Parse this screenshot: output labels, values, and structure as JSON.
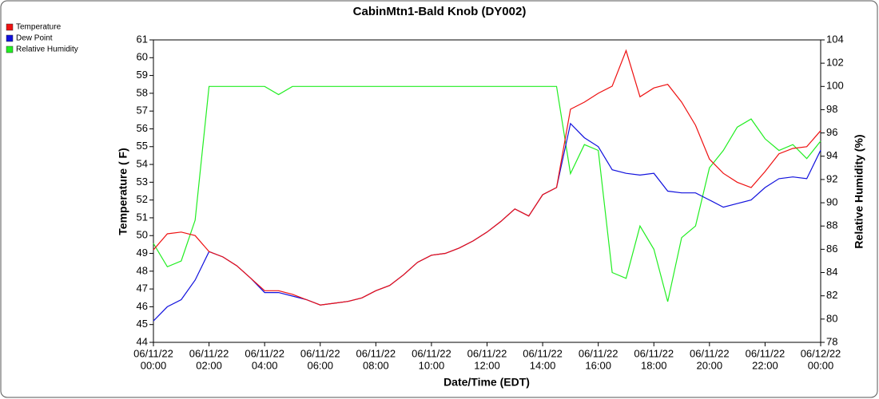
{
  "chart_data": {
    "type": "line",
    "title": "CabinMtn1-Bald Knob (DY002)",
    "x_label": "Date/Time (EDT)",
    "y_label": "Temperature ( F)",
    "y2_label": "Relative Humidity (%)",
    "legend": "top-left",
    "xlim": [
      "2022-06-11T00:00",
      "2022-06-12T00:00"
    ],
    "xticks": [
      {
        "value": "2022-06-11T00:00",
        "label": [
          "06/11/22",
          "00:00"
        ]
      },
      {
        "value": "2022-06-11T02:00",
        "label": [
          "06/11/22",
          "02:00"
        ]
      },
      {
        "value": "2022-06-11T04:00",
        "label": [
          "06/11/22",
          "04:00"
        ]
      },
      {
        "value": "2022-06-11T06:00",
        "label": [
          "06/11/22",
          "06:00"
        ]
      },
      {
        "value": "2022-06-11T08:00",
        "label": [
          "06/11/22",
          "08:00"
        ]
      },
      {
        "value": "2022-06-11T10:00",
        "label": [
          "06/11/22",
          "10:00"
        ]
      },
      {
        "value": "2022-06-11T12:00",
        "label": [
          "06/11/22",
          "12:00"
        ]
      },
      {
        "value": "2022-06-11T14:00",
        "label": [
          "06/11/22",
          "14:00"
        ]
      },
      {
        "value": "2022-06-11T16:00",
        "label": [
          "06/11/22",
          "16:00"
        ]
      },
      {
        "value": "2022-06-11T18:00",
        "label": [
          "06/11/22",
          "18:00"
        ]
      },
      {
        "value": "2022-06-11T20:00",
        "label": [
          "06/11/22",
          "20:00"
        ]
      },
      {
        "value": "2022-06-11T22:00",
        "label": [
          "06/11/22",
          "22:00"
        ]
      },
      {
        "value": "2022-06-12T00:00",
        "label": [
          "06/12/22",
          "00:00"
        ]
      }
    ],
    "ylim": [
      44,
      61
    ],
    "yticks": [
      44,
      45,
      46,
      47,
      48,
      49,
      50,
      51,
      52,
      53,
      54,
      55,
      56,
      57,
      58,
      59,
      60,
      61
    ],
    "y2lim": [
      78,
      104
    ],
    "y2ticks": [
      78,
      80,
      82,
      84,
      86,
      88,
      90,
      92,
      94,
      96,
      98,
      100,
      102,
      104
    ],
    "x": [
      "2022-06-11T00:00",
      "2022-06-11T00:30",
      "2022-06-11T01:00",
      "2022-06-11T01:30",
      "2022-06-11T02:00",
      "2022-06-11T02:30",
      "2022-06-11T03:00",
      "2022-06-11T03:30",
      "2022-06-11T04:00",
      "2022-06-11T04:30",
      "2022-06-11T05:00",
      "2022-06-11T05:30",
      "2022-06-11T06:00",
      "2022-06-11T06:30",
      "2022-06-11T07:00",
      "2022-06-11T07:30",
      "2022-06-11T08:00",
      "2022-06-11T08:30",
      "2022-06-11T09:00",
      "2022-06-11T09:30",
      "2022-06-11T10:00",
      "2022-06-11T10:30",
      "2022-06-11T11:00",
      "2022-06-11T11:30",
      "2022-06-11T12:00",
      "2022-06-11T12:30",
      "2022-06-11T13:00",
      "2022-06-11T13:30",
      "2022-06-11T14:00",
      "2022-06-11T14:30",
      "2022-06-11T15:00",
      "2022-06-11T15:30",
      "2022-06-11T16:00",
      "2022-06-11T16:30",
      "2022-06-11T17:00",
      "2022-06-11T17:30",
      "2022-06-11T18:00",
      "2022-06-11T18:30",
      "2022-06-11T19:00",
      "2022-06-11T19:30",
      "2022-06-11T20:00",
      "2022-06-11T20:30",
      "2022-06-11T21:00",
      "2022-06-11T21:30",
      "2022-06-11T22:00",
      "2022-06-11T22:30",
      "2022-06-11T23:00",
      "2022-06-11T23:30",
      "2022-06-12T00:00"
    ],
    "series": [
      {
        "name": "Temperature",
        "color": "#ee1111",
        "values": [
          49.2,
          50.1,
          50.2,
          50.0,
          49.1,
          48.8,
          48.3,
          47.6,
          46.9,
          46.9,
          46.7,
          46.4,
          46.1,
          46.2,
          46.3,
          46.5,
          46.9,
          47.2,
          47.8,
          48.5,
          48.9,
          49.0,
          49.3,
          49.7,
          50.2,
          50.8,
          51.5,
          51.1,
          52.3,
          52.7,
          57.1,
          57.5,
          58.0,
          58.4,
          60.4,
          57.8,
          58.3,
          58.5,
          57.5,
          56.2,
          54.3,
          53.5,
          53.0,
          52.7,
          53.6,
          54.6,
          54.9,
          55.0,
          55.9
        ]
      },
      {
        "name": "Dew Point",
        "color": "#1111dd",
        "values": [
          45.2,
          46.0,
          46.4,
          47.5,
          49.1,
          48.8,
          48.3,
          47.6,
          46.8,
          46.8,
          46.6,
          46.4,
          46.1,
          46.2,
          46.3,
          46.5,
          46.9,
          47.2,
          47.8,
          48.5,
          48.9,
          49.0,
          49.3,
          49.7,
          50.2,
          50.8,
          51.5,
          51.1,
          52.3,
          52.7,
          56.3,
          55.5,
          55.0,
          53.7,
          53.5,
          53.4,
          53.5,
          52.5,
          52.4,
          52.4,
          52.0,
          51.6,
          51.8,
          52.0,
          52.7,
          53.2,
          53.3,
          53.2,
          54.8
        ]
      },
      {
        "name": "Relative Humidity",
        "color": "#22ee22",
        "axis": "y2",
        "values": [
          86.5,
          84.5,
          85.0,
          88.5,
          100,
          100,
          100,
          100,
          100,
          99.3,
          100,
          100,
          100,
          100,
          100,
          100,
          100,
          100,
          100,
          100,
          100,
          100,
          100,
          100,
          100,
          100,
          100,
          100,
          100,
          100,
          92.5,
          95.0,
          94.5,
          84.0,
          83.5,
          88.0,
          86.0,
          81.5,
          87.0,
          88.0,
          93.0,
          94.5,
          96.5,
          97.2,
          95.5,
          94.5,
          95.0,
          93.8,
          95.3
        ]
      }
    ]
  }
}
